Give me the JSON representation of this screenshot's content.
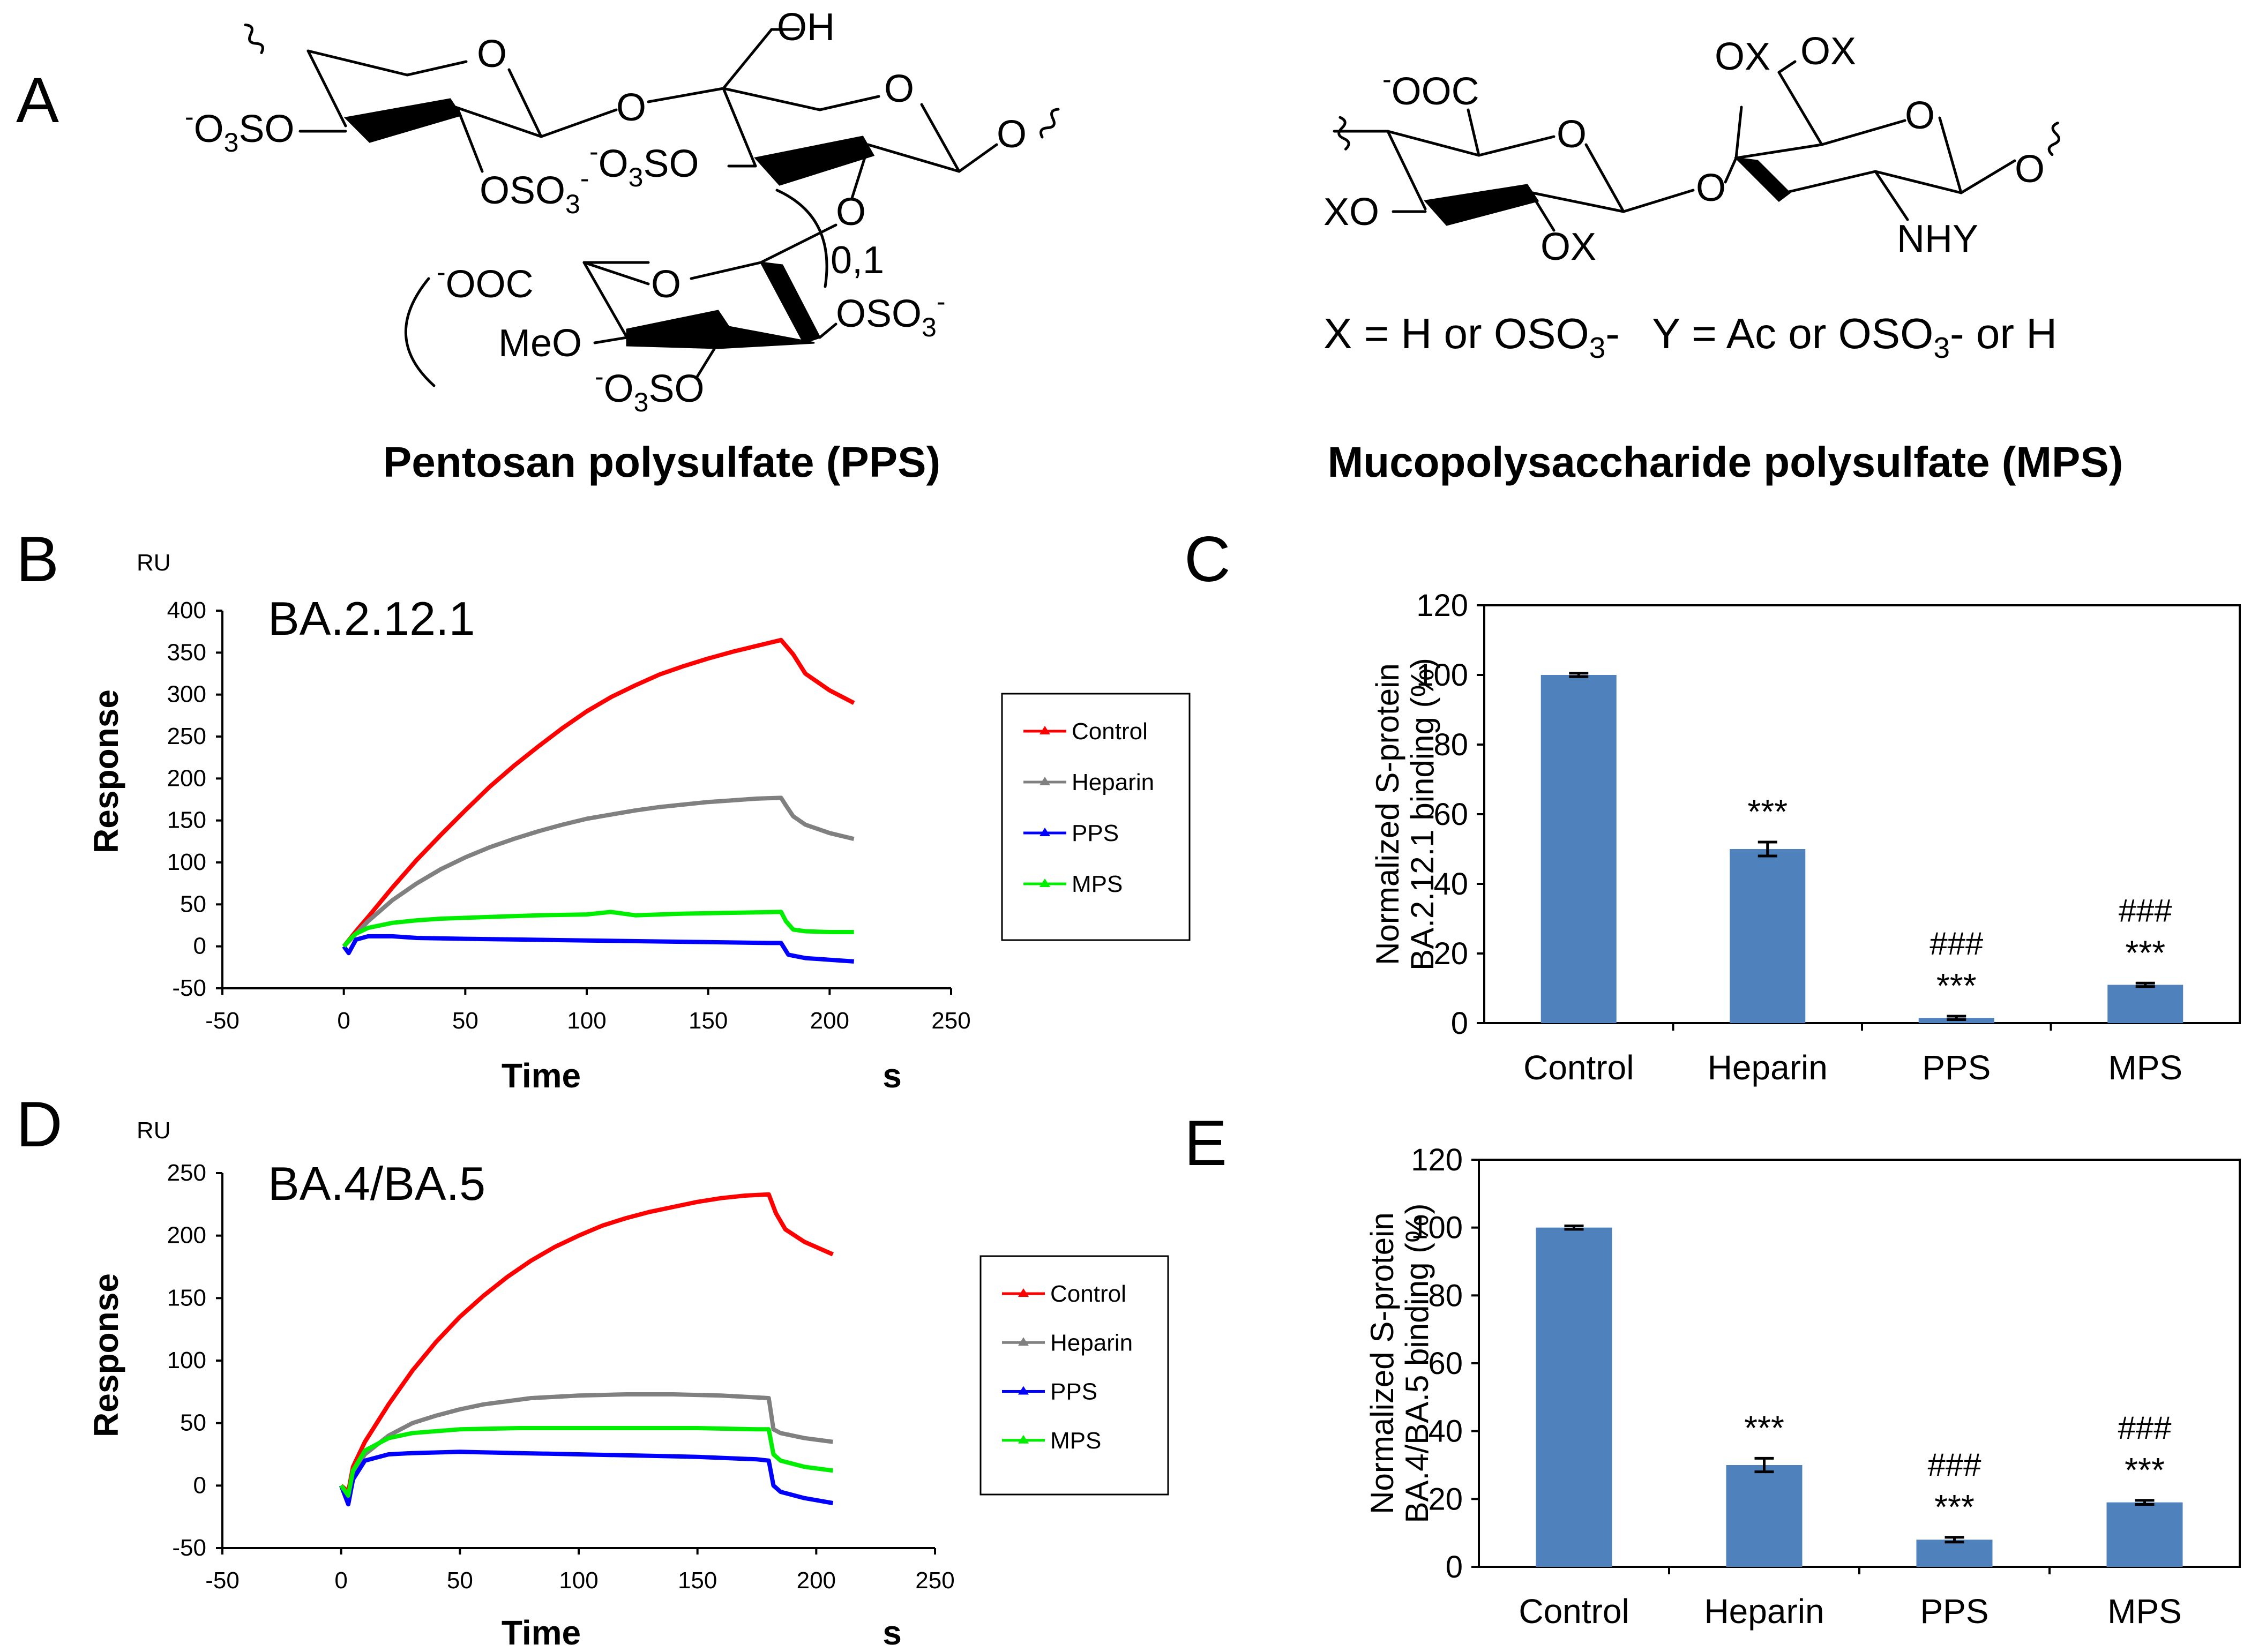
{
  "panels": {
    "A": "A",
    "B": "B",
    "C": "C",
    "D": "D",
    "E": "E"
  },
  "structures": {
    "pps": {
      "title": "Pentosan polysulfate (PPS)",
      "labels": {
        "o_ring1": "O",
        "oh": "OH",
        "o_ring2": "O",
        "o_link1": "O",
        "o_end": "O",
        "o3so_left_pre": "-",
        "o3so_left": "O",
        "o3so_left_sub": "3",
        "o3so_left_post": "SO",
        "oso3_1": "OSO",
        "oso3_1_sub": "3",
        "oso3_1_sup": "-",
        "o3so_mid_pre": "-",
        "o3so_mid": "O",
        "o3so_mid_sub": "3",
        "o3so_mid_post": "SO",
        "o_link2": "O",
        "repeat": "0,1",
        "ooc": "OOC",
        "ooc_pre": "-",
        "o_ring3": "O",
        "oso3_2": "OSO",
        "oso3_2_sub": "3",
        "oso3_2_sup": "-",
        "meo": "MeO",
        "o3so_bot_pre": "-",
        "o3so_bot": "O",
        "o3so_bot_sub": "3",
        "o3so_bot_post": "SO"
      }
    },
    "mps": {
      "title": "Mucopolysaccharide polysulfate (MPS)",
      "labels": {
        "ooc_pre": "-",
        "ooc": "OOC",
        "o_ring1": "O",
        "xo": "XO",
        "ox1": "OX",
        "o_link": "O",
        "ox2": "OX",
        "ox3": "OX",
        "o_ring2": "O",
        "nhy": "NHY",
        "o_end": "O"
      },
      "formula_x": "X = H or OSO",
      "formula_x_sub": "3",
      "formula_x_post": "-",
      "formula_y": "Y = Ac or OSO",
      "formula_y_sub": "3",
      "formula_y_post": "- or H"
    }
  },
  "chart_data": [
    {
      "panel": "B",
      "type": "line",
      "title": "BA.2.12.1",
      "unit_label": "RU",
      "xlabel": "Time",
      "xunit": "s",
      "ylabel": "Response",
      "xlim": [
        -50,
        250
      ],
      "ylim": [
        -50,
        400
      ],
      "xticks": [
        -50,
        0,
        50,
        100,
        150,
        200,
        250
      ],
      "yticks": [
        -50,
        0,
        50,
        100,
        150,
        200,
        250,
        300,
        350,
        400
      ],
      "legend": [
        "Control",
        "Heparin",
        "PPS",
        "MPS"
      ],
      "legend_position": "right",
      "series": [
        {
          "name": "Control",
          "color": "#ff0000",
          "x": [
            0,
            5,
            10,
            20,
            30,
            40,
            50,
            60,
            70,
            80,
            90,
            100,
            110,
            120,
            130,
            140,
            150,
            160,
            170,
            180,
            185,
            190,
            200,
            210
          ],
          "y": [
            0,
            18,
            35,
            70,
            103,
            133,
            162,
            190,
            215,
            238,
            260,
            280,
            297,
            311,
            324,
            334,
            343,
            351,
            358,
            365,
            348,
            325,
            305,
            290
          ]
        },
        {
          "name": "Heparin",
          "color": "#808080",
          "x": [
            0,
            5,
            10,
            20,
            30,
            40,
            50,
            60,
            70,
            80,
            90,
            100,
            110,
            120,
            130,
            140,
            150,
            160,
            170,
            180,
            182,
            185,
            190,
            200,
            210
          ],
          "y": [
            0,
            15,
            30,
            55,
            75,
            92,
            106,
            118,
            128,
            137,
            145,
            152,
            157,
            162,
            166,
            169,
            172,
            174,
            176,
            177,
            168,
            155,
            145,
            135,
            128
          ]
        },
        {
          "name": "PPS",
          "color": "#0000ff",
          "x": [
            0,
            2,
            5,
            10,
            20,
            30,
            50,
            75,
            100,
            125,
            150,
            175,
            180,
            183,
            190,
            200,
            210
          ],
          "y": [
            0,
            -8,
            8,
            12,
            12,
            10,
            9,
            8,
            7,
            6,
            5,
            4,
            4,
            -10,
            -14,
            -16,
            -18
          ]
        },
        {
          "name": "MPS",
          "color": "#00ee00",
          "x": [
            0,
            3,
            5,
            10,
            20,
            30,
            40,
            60,
            80,
            100,
            110,
            120,
            140,
            160,
            180,
            182,
            185,
            190,
            200,
            210
          ],
          "y": [
            0,
            10,
            15,
            22,
            28,
            31,
            33,
            35,
            37,
            38,
            41,
            37,
            39,
            40,
            41,
            30,
            20,
            18,
            17,
            17
          ]
        }
      ]
    },
    {
      "panel": "C",
      "type": "bar",
      "ylabel_line1": "Normalized S-protein",
      "ylabel_line2": "BA.2.12.1  binding (%)",
      "categories": [
        "Control",
        "Heparin",
        "PPS",
        "MPS"
      ],
      "values": [
        100,
        50,
        1.5,
        11
      ],
      "errors": [
        0.5,
        2,
        0.5,
        0.5
      ],
      "annotations_sig": [
        "",
        "***",
        "***",
        "***"
      ],
      "annotations_hash": [
        "",
        "",
        "###",
        "###"
      ],
      "ylim": [
        0,
        120
      ],
      "yticks": [
        0,
        20,
        40,
        60,
        80,
        100,
        120
      ],
      "color": "#4f81bd"
    },
    {
      "panel": "D",
      "type": "line",
      "title": "BA.4/BA.5",
      "unit_label": "RU",
      "xlabel": "Time",
      "xunit": "s",
      "ylabel": "Response",
      "xlim": [
        -50,
        250
      ],
      "ylim": [
        -50,
        250
      ],
      "xticks": [
        -50,
        0,
        50,
        100,
        150,
        200,
        250
      ],
      "yticks": [
        -50,
        0,
        50,
        100,
        150,
        200,
        250
      ],
      "legend": [
        "Control",
        "Heparin",
        "PPS",
        "MPS"
      ],
      "legend_position": "right",
      "series": [
        {
          "name": "Control",
          "color": "#ff0000",
          "x": [
            0,
            3,
            5,
            10,
            20,
            30,
            40,
            50,
            60,
            70,
            80,
            90,
            100,
            110,
            120,
            130,
            140,
            150,
            160,
            170,
            180,
            183,
            187,
            195,
            207
          ],
          "y": [
            0,
            -5,
            15,
            35,
            65,
            92,
            115,
            135,
            152,
            167,
            180,
            191,
            200,
            208,
            214,
            219,
            223,
            227,
            230,
            232,
            233,
            218,
            205,
            195,
            185
          ]
        },
        {
          "name": "Heparin",
          "color": "#808080",
          "x": [
            0,
            3,
            5,
            10,
            20,
            30,
            40,
            50,
            60,
            80,
            100,
            120,
            140,
            160,
            180,
            182,
            185,
            195,
            207
          ],
          "y": [
            0,
            -8,
            10,
            25,
            40,
            50,
            56,
            61,
            65,
            70,
            72,
            73,
            73,
            72,
            70,
            45,
            42,
            38,
            35
          ]
        },
        {
          "name": "PPS",
          "color": "#0000ff",
          "x": [
            0,
            3,
            5,
            10,
            20,
            30,
            50,
            75,
            100,
            125,
            150,
            175,
            180,
            182,
            185,
            195,
            207
          ],
          "y": [
            0,
            -15,
            5,
            20,
            25,
            26,
            27,
            26,
            25,
            24,
            23,
            21,
            20,
            0,
            -5,
            -10,
            -14
          ]
        },
        {
          "name": "MPS",
          "color": "#00ee00",
          "x": [
            0,
            3,
            5,
            10,
            20,
            30,
            50,
            75,
            100,
            125,
            150,
            175,
            180,
            182,
            185,
            195,
            207
          ],
          "y": [
            0,
            -8,
            12,
            28,
            38,
            42,
            45,
            46,
            46,
            46,
            46,
            45,
            45,
            25,
            20,
            15,
            12
          ]
        }
      ]
    },
    {
      "panel": "E",
      "type": "bar",
      "ylabel_line1": "Normalized S-protein",
      "ylabel_line2": "BA.4/BA.5  binding (%)",
      "categories": [
        "Control",
        "Heparin",
        "PPS",
        "MPS"
      ],
      "values": [
        100,
        30,
        8,
        19
      ],
      "errors": [
        0.5,
        2,
        0.7,
        0.6
      ],
      "annotations_sig": [
        "",
        "***",
        "***",
        "***"
      ],
      "annotations_hash": [
        "",
        "",
        "###",
        "###"
      ],
      "ylim": [
        0,
        120
      ],
      "yticks": [
        0,
        20,
        40,
        60,
        80,
        100,
        120
      ],
      "color": "#4f81bd"
    }
  ]
}
